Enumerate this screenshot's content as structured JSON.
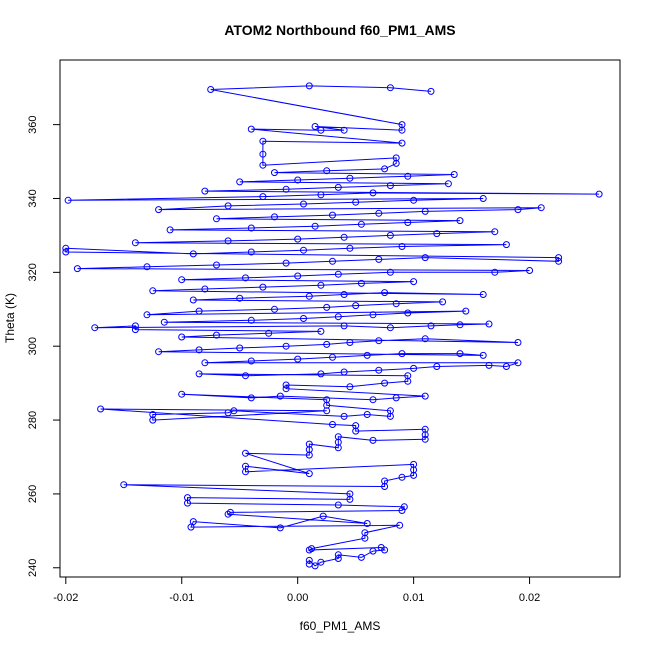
{
  "chart_data": {
    "type": "scatter",
    "title": "ATOM2 Northbound f60_PM1_AMS",
    "xlabel": "f60_PM1_AMS",
    "ylabel": "Theta (K)",
    "xlim": [
      -0.0205,
      0.0278
    ],
    "ylim": [
      237.5,
      377.5
    ],
    "xticks": [
      -0.02,
      -0.01,
      0.0,
      0.01,
      0.02
    ],
    "xtick_labels": [
      "-0.02",
      "-0.01",
      "0.00",
      "0.01",
      "0.02"
    ],
    "yticks": [
      240,
      260,
      280,
      300,
      320,
      340,
      360
    ],
    "ytick_labels": [
      "240",
      "260",
      "280",
      "300",
      "320",
      "340",
      "360"
    ],
    "series_color": "#0000ff",
    "marker": "open-circle",
    "connected": true,
    "grid": false,
    "series": [
      {
        "points": [
          [
            0.001,
            241.0
          ],
          [
            0.001,
            242.0
          ],
          [
            0.0015,
            240.5
          ],
          [
            0.002,
            241.5
          ],
          [
            0.0035,
            242.5
          ],
          [
            0.0035,
            243.5
          ],
          [
            0.0055,
            242.8
          ],
          [
            0.0065,
            244.5
          ],
          [
            0.0075,
            244.8
          ],
          [
            0.0072,
            245.5
          ],
          [
            0.001,
            244.8
          ],
          [
            0.0012,
            245.2
          ],
          [
            0.0058,
            248.0
          ],
          [
            0.0058,
            249.5
          ],
          [
            0.0088,
            251.5
          ],
          [
            -0.0092,
            251.0
          ],
          [
            -0.009,
            252.5
          ],
          [
            -0.0015,
            250.8
          ],
          [
            0.0022,
            254.0
          ],
          [
            0.006,
            252.0
          ],
          [
            -0.006,
            254.5
          ],
          [
            -0.0058,
            255.0
          ],
          [
            0.009,
            255.5
          ],
          [
            0.0092,
            256.5
          ],
          [
            0.0035,
            257.0
          ],
          [
            -0.0095,
            257.5
          ],
          [
            -0.0095,
            259.0
          ],
          [
            0.0045,
            258.5
          ],
          [
            0.0045,
            260.0
          ],
          [
            -0.015,
            262.5
          ],
          [
            0.0075,
            262.0
          ],
          [
            0.0075,
            263.5
          ],
          [
            0.009,
            264.5
          ],
          [
            0.01,
            265.0
          ],
          [
            0.01,
            266.5
          ],
          [
            0.01,
            268.0
          ],
          [
            -0.0045,
            266.0
          ],
          [
            -0.0045,
            267.5
          ],
          [
            0.001,
            265.5
          ],
          [
            -0.0045,
            271.0
          ],
          [
            0.001,
            270.5
          ],
          [
            0.001,
            272.0
          ],
          [
            0.001,
            273.5
          ],
          [
            0.0035,
            272.5
          ],
          [
            0.0035,
            274.0
          ],
          [
            0.0035,
            275.5
          ],
          [
            0.0065,
            274.5
          ],
          [
            0.011,
            274.8
          ],
          [
            0.011,
            276.0
          ],
          [
            0.011,
            277.5
          ],
          [
            0.005,
            277.0
          ],
          [
            0.005,
            278.5
          ],
          [
            0.003,
            278.8
          ],
          [
            -0.017,
            283.0
          ],
          [
            0.0025,
            282.5
          ],
          [
            -0.0125,
            280.0
          ],
          [
            -0.0125,
            281.5
          ],
          [
            -0.006,
            282.0
          ],
          [
            -0.0055,
            282.5
          ],
          [
            0.004,
            281.0
          ],
          [
            0.006,
            281.5
          ],
          [
            0.008,
            281.0
          ],
          [
            0.008,
            282.5
          ],
          [
            0.0025,
            284.0
          ],
          [
            0.0025,
            285.5
          ],
          [
            -0.01,
            287.0
          ],
          [
            -0.004,
            286.0
          ],
          [
            -0.0015,
            286.5
          ],
          [
            0.0065,
            285.5
          ],
          [
            0.0085,
            286.0
          ],
          [
            0.011,
            286.5
          ],
          [
            -0.001,
            288.5
          ],
          [
            -0.001,
            289.5
          ],
          [
            0.0045,
            289.0
          ],
          [
            0.0075,
            290.0
          ],
          [
            0.0095,
            290.5
          ],
          [
            0.0095,
            292.0
          ],
          [
            -0.0085,
            292.5
          ],
          [
            -0.0045,
            292.0
          ],
          [
            0.002,
            292.5
          ],
          [
            0.004,
            293.0
          ],
          [
            0.007,
            293.5
          ],
          [
            0.01,
            294.0
          ],
          [
            0.012,
            294.5
          ],
          [
            0.0165,
            294.8
          ],
          [
            0.018,
            294.5
          ],
          [
            0.019,
            295.5
          ],
          [
            -0.008,
            295.5
          ],
          [
            -0.004,
            296.0
          ],
          [
            0.0,
            296.5
          ],
          [
            0.003,
            297.0
          ],
          [
            0.006,
            297.5
          ],
          [
            0.009,
            298.0
          ],
          [
            0.014,
            298.0
          ],
          [
            0.016,
            297.5
          ],
          [
            -0.012,
            298.5
          ],
          [
            -0.0085,
            299.0
          ],
          [
            -0.005,
            299.5
          ],
          [
            -0.001,
            300.0
          ],
          [
            0.0025,
            300.5
          ],
          [
            0.0045,
            301.0
          ],
          [
            0.007,
            301.5
          ],
          [
            0.011,
            302.0
          ],
          [
            0.019,
            301.0
          ],
          [
            -0.01,
            302.5
          ],
          [
            -0.007,
            303.0
          ],
          [
            -0.0025,
            303.5
          ],
          [
            0.002,
            304.0
          ],
          [
            -0.014,
            304.5
          ],
          [
            -0.014,
            305.5
          ],
          [
            -0.0175,
            305.0
          ],
          [
            0.004,
            305.5
          ],
          [
            0.008,
            305.0
          ],
          [
            0.0115,
            305.5
          ],
          [
            0.014,
            305.8
          ],
          [
            0.0165,
            306.0
          ],
          [
            -0.0115,
            306.5
          ],
          [
            -0.004,
            307.0
          ],
          [
            0.0005,
            307.5
          ],
          [
            0.0035,
            308.0
          ],
          [
            0.0065,
            308.5
          ],
          [
            0.0095,
            309.0
          ],
          [
            0.0145,
            309.5
          ],
          [
            -0.013,
            308.5
          ],
          [
            -0.0085,
            309.5
          ],
          [
            -0.002,
            310.0
          ],
          [
            0.0025,
            310.5
          ],
          [
            0.005,
            311.0
          ],
          [
            0.0085,
            311.5
          ],
          [
            0.0125,
            312.0
          ],
          [
            -0.009,
            312.5
          ],
          [
            -0.005,
            313.0
          ],
          [
            0.001,
            313.5
          ],
          [
            0.004,
            314.0
          ],
          [
            0.0075,
            314.5
          ],
          [
            0.016,
            314.0
          ],
          [
            -0.0125,
            315.0
          ],
          [
            -0.008,
            315.5
          ],
          [
            -0.003,
            316.0
          ],
          [
            0.002,
            316.5
          ],
          [
            0.0055,
            317.0
          ],
          [
            0.01,
            317.5
          ],
          [
            -0.01,
            318.0
          ],
          [
            -0.0045,
            318.5
          ],
          [
            0.0,
            319.0
          ],
          [
            0.0035,
            319.5
          ],
          [
            0.008,
            320.0
          ],
          [
            0.017,
            320.0
          ],
          [
            0.02,
            320.5
          ],
          [
            -0.019,
            321.0
          ],
          [
            -0.013,
            321.5
          ],
          [
            -0.007,
            322.0
          ],
          [
            -0.001,
            322.5
          ],
          [
            0.003,
            323.0
          ],
          [
            0.007,
            323.5
          ],
          [
            0.011,
            324.0
          ],
          [
            0.0225,
            323.0
          ],
          [
            0.0225,
            324.0
          ],
          [
            -0.02,
            325.5
          ],
          [
            -0.02,
            326.5
          ],
          [
            -0.009,
            325.0
          ],
          [
            -0.004,
            325.5
          ],
          [
            0.0005,
            326.0
          ],
          [
            0.0045,
            326.5
          ],
          [
            0.009,
            327.0
          ],
          [
            0.018,
            327.5
          ],
          [
            -0.014,
            328.0
          ],
          [
            -0.006,
            328.5
          ],
          [
            0.0,
            329.0
          ],
          [
            0.004,
            329.5
          ],
          [
            0.008,
            330.0
          ],
          [
            0.012,
            330.5
          ],
          [
            0.017,
            331.0
          ],
          [
            -0.011,
            331.5
          ],
          [
            -0.004,
            332.0
          ],
          [
            0.0015,
            332.5
          ],
          [
            0.0055,
            333.0
          ],
          [
            0.0095,
            333.5
          ],
          [
            0.014,
            334.0
          ],
          [
            -0.007,
            334.5
          ],
          [
            -0.002,
            335.0
          ],
          [
            0.003,
            335.5
          ],
          [
            0.007,
            336.0
          ],
          [
            0.011,
            336.5
          ],
          [
            0.019,
            337.0
          ],
          [
            0.021,
            337.5
          ],
          [
            -0.012,
            337.0
          ],
          [
            -0.006,
            338.0
          ],
          [
            0.0005,
            338.5
          ],
          [
            0.005,
            339.0
          ],
          [
            0.01,
            339.5
          ],
          [
            0.016,
            340.0
          ],
          [
            -0.0198,
            339.5
          ],
          [
            -0.003,
            340.5
          ],
          [
            0.002,
            341.0
          ],
          [
            0.0065,
            341.5
          ],
          [
            0.026,
            341.2
          ],
          [
            -0.008,
            342.0
          ],
          [
            -0.001,
            342.5
          ],
          [
            0.0035,
            343.0
          ],
          [
            0.008,
            343.5
          ],
          [
            0.013,
            344.0
          ],
          [
            -0.005,
            344.5
          ],
          [
            0.0,
            345.0
          ],
          [
            0.0045,
            345.5
          ],
          [
            0.0095,
            346.0
          ],
          [
            0.0135,
            346.5
          ],
          [
            -0.002,
            347.0
          ],
          [
            0.0025,
            347.5
          ],
          [
            0.0075,
            348.0
          ],
          [
            0.0085,
            349.5
          ],
          [
            0.0085,
            351.0
          ],
          [
            -0.003,
            349.0
          ],
          [
            -0.003,
            352.0
          ],
          [
            -0.003,
            355.5
          ],
          [
            0.009,
            355.0
          ],
          [
            -0.004,
            358.8
          ],
          [
            0.002,
            358.5
          ],
          [
            0.004,
            358.5
          ],
          [
            0.0015,
            359.5
          ],
          [
            0.009,
            358.5
          ],
          [
            0.009,
            360.0
          ],
          [
            -0.0075,
            369.5
          ],
          [
            0.001,
            370.5
          ],
          [
            0.008,
            370.0
          ],
          [
            0.0115,
            369.0
          ]
        ]
      }
    ]
  }
}
